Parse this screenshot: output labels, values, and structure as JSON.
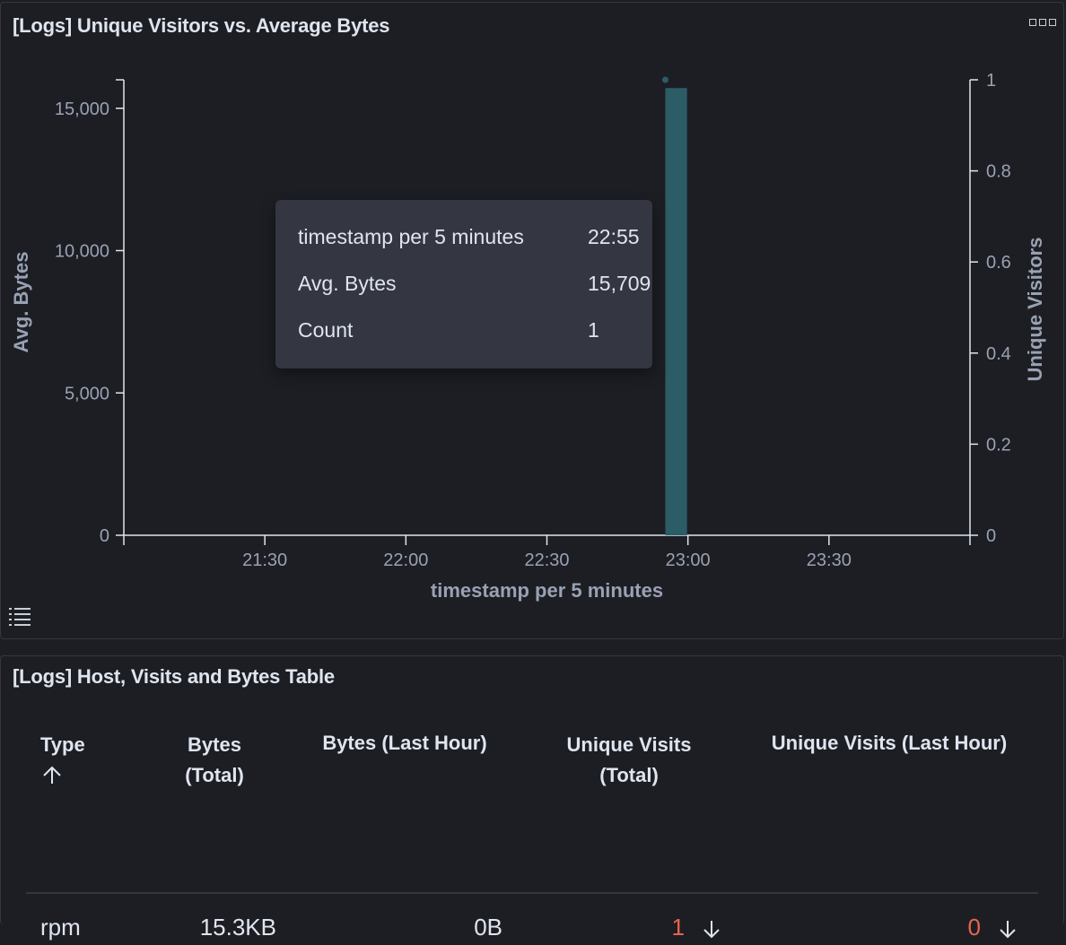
{
  "chart_panel": {
    "title": "[Logs] Unique Visitors vs. Average Bytes"
  },
  "chart_data": {
    "type": "bar",
    "title": "",
    "xlabel": "timestamp per 5 minutes",
    "ylabel": "Avg. Bytes",
    "y2label": "Unique Visitors",
    "x_ticks": [
      "21:30",
      "22:00",
      "22:30",
      "23:00",
      "23:30"
    ],
    "x_range": [
      "21:00",
      "24:00"
    ],
    "y_ticks": [
      "0",
      "5,000",
      "10,000",
      "15,000"
    ],
    "ylim": [
      0,
      16000
    ],
    "y2_ticks": [
      "0",
      "0.2",
      "0.4",
      "0.6",
      "0.8",
      "1"
    ],
    "y2lim": [
      0,
      1
    ],
    "series": [
      {
        "name": "Avg. Bytes",
        "type": "bar",
        "x": [
          "22:55"
        ],
        "values": [
          15709
        ],
        "color": "#2c5d67"
      },
      {
        "name": "Unique Visitors",
        "type": "line",
        "x": [
          "22:55"
        ],
        "values": [
          1
        ],
        "color": "#54b399"
      }
    ]
  },
  "tooltip": {
    "rows": [
      {
        "label": "timestamp per 5 minutes",
        "value": "22:55"
      },
      {
        "label": "Avg. Bytes",
        "value": "15,709"
      },
      {
        "label": "Count",
        "value": "1"
      }
    ]
  },
  "table_panel": {
    "title": "[Logs] Host, Visits and Bytes Table",
    "columns": [
      {
        "line1": "Type",
        "line2": ""
      },
      {
        "line1": "Bytes",
        "line2": "(Total)"
      },
      {
        "line1": "Bytes (Last Hour)",
        "line2": ""
      },
      {
        "line1": "Unique Visits",
        "line2": "(Total)"
      },
      {
        "line1": "Unique Visits (Last Hour)",
        "line2": ""
      }
    ],
    "sort_column": "Type",
    "sort_direction": "ascending",
    "rows": [
      {
        "type": "rpm",
        "bytes_total": "15.3KB",
        "bytes_last_hour": "0B",
        "unique_visits_total": "1",
        "unique_visits_last_hour": "0"
      }
    ],
    "highlight_color": "#e7664c"
  }
}
